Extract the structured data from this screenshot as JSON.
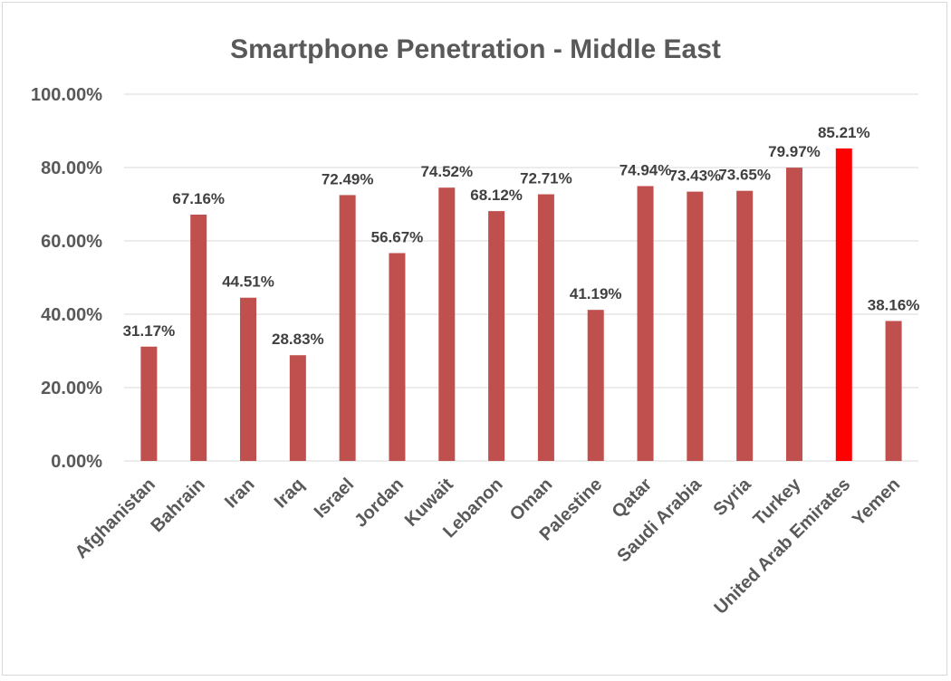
{
  "chart_data": {
    "type": "bar",
    "title": "Smartphone Penetration - Middle East",
    "xlabel": "",
    "ylabel": "",
    "ylim": [
      0,
      100
    ],
    "y_tick_values": [
      0,
      20,
      40,
      60,
      80,
      100
    ],
    "y_tick_labels": [
      "0.00%",
      "20.00%",
      "40.00%",
      "60.00%",
      "80.00%",
      "100.00%"
    ],
    "grid": true,
    "legend": "none",
    "categories": [
      "Afghanistan",
      "Bahrain",
      "Iran",
      "Iraq",
      "Israel",
      "Jordan",
      "Kuwait",
      "Lebanon",
      "Oman",
      "Palestine",
      "Qatar",
      "Saudi Arabia",
      "Syria",
      "Turkey",
      "United Arab Emirates",
      "Yemen"
    ],
    "values": [
      31.17,
      67.16,
      44.51,
      28.83,
      72.49,
      56.67,
      74.52,
      68.12,
      72.71,
      41.19,
      74.94,
      73.43,
      73.65,
      79.97,
      85.21,
      38.16
    ],
    "data_labels": [
      "31.17%",
      "67.16%",
      "44.51%",
      "28.83%",
      "72.49%",
      "56.67%",
      "74.52%",
      "68.12%",
      "72.71%",
      "41.19%",
      "74.94%",
      "73.43%",
      "73.65%",
      "79.97%",
      "85.21%",
      "38.16%"
    ],
    "colors": {
      "default": "#c0504d",
      "highlight": "#ff0000",
      "grid": "#d9d9d9",
      "axis_text": "#595959",
      "label_text": "#404040"
    },
    "highlight_index": 14
  }
}
